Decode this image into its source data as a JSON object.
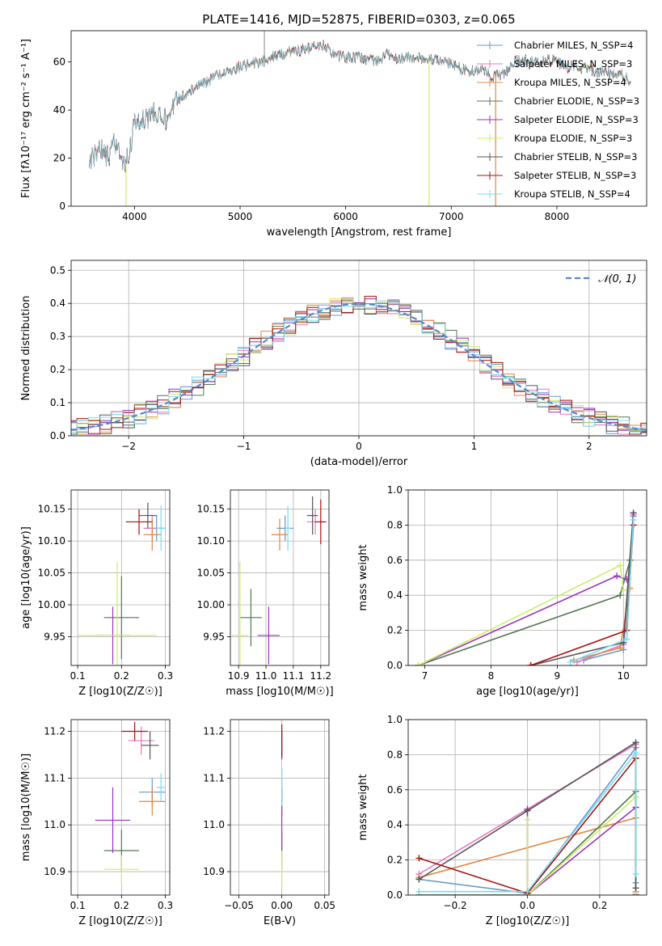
{
  "colors": [
    "#6699cc",
    "#e377c2",
    "#dd8844",
    "#557755",
    "#9933bb",
    "#ccee66",
    "#555555",
    "#aa1111",
    "#77ddee"
  ],
  "chart_data": [
    {
      "type": "line",
      "title": "PLATE=1416, MJD=52875, FIBERID=0303, z=0.065",
      "xlabel": "wavelength [Angstrom, rest frame]",
      "ylabel": "Flux [fλ10⁻¹⁷ erg cm⁻² s⁻¹ A⁻¹]",
      "xlim": [
        3400,
        8850
      ],
      "ylim": [
        0,
        73
      ],
      "xticks": [
        4000,
        5000,
        6000,
        7000,
        8000
      ],
      "xtick_labels": [
        "4000",
        "5000",
        "6000",
        "7000",
        "8000"
      ],
      "yticks": [
        0,
        20,
        40,
        60
      ],
      "ytick_labels": [
        "0",
        "20",
        "40",
        "60"
      ],
      "grid": false,
      "legend": "top-right",
      "legend_entries": [
        "Chabrier MILES, N_SSP=4",
        "Salpeter MILES, N_SSP=3",
        "Kroupa MILES, N_SSP=4",
        "Chabrier ELODIE, N_SSP=3",
        "Salpeter ELODIE, N_SSP=3",
        "Kroupa ELODIE, N_SSP=3",
        "Chabrier STELIB, N_SSP=3",
        "Salpeter STELIB, N_SSP=3",
        "Kroupa STELIB, N_SSP=4"
      ],
      "spectrum_x": [
        3570,
        3600,
        3650,
        3700,
        3750,
        3800,
        3850,
        3900,
        3950,
        4000,
        4050,
        4100,
        4150,
        4200,
        4250,
        4300,
        4400,
        4500,
        4600,
        4700,
        4800,
        4900,
        5000,
        5100,
        5200,
        5300,
        5400,
        5500,
        5600,
        5700,
        5800,
        5900,
        6000,
        6100,
        6200,
        6300,
        6400,
        6500,
        6600,
        6700,
        6800,
        6900,
        7000,
        7100,
        7200,
        7300,
        7400,
        7500,
        7600,
        7700,
        7800,
        7900,
        8000,
        8100,
        8200,
        8300,
        8400,
        8500,
        8600,
        8700
      ],
      "spectrum_y": [
        16,
        20,
        22,
        24,
        20,
        26,
        22,
        18,
        22,
        34,
        35,
        36,
        37,
        39,
        40,
        36,
        44,
        47,
        50,
        52,
        55,
        56,
        58,
        59,
        60,
        62,
        63,
        65,
        65,
        66,
        67,
        63,
        62,
        62,
        61,
        60,
        63,
        61,
        62,
        62,
        61,
        61,
        59,
        57,
        56,
        57,
        54,
        55,
        60,
        61,
        60,
        61,
        60,
        58,
        58,
        57,
        56,
        55,
        55,
        52
      ],
      "vertical_spikes": [
        {
          "x": 3920,
          "y_top": 0,
          "y_bottom": 18,
          "color": "#ccee66"
        },
        {
          "x": 5230,
          "y_top": 73,
          "y_bottom": 58,
          "color": "#999999"
        },
        {
          "x": 6790,
          "y_top": 61,
          "y_bottom": 0,
          "color": "#ccee66"
        },
        {
          "x": 7420,
          "y_top": 56,
          "y_bottom": 0,
          "color": "#dd8844"
        }
      ]
    },
    {
      "type": "histogram",
      "xlabel": "(data-model)/error",
      "ylabel": "Normed distribution",
      "xlim": [
        -2.5,
        2.5
      ],
      "ylim": [
        0,
        0.53
      ],
      "xticks": [
        -2,
        -1,
        0,
        1,
        2
      ],
      "xtick_labels": [
        "−2",
        "−1",
        "0",
        "1",
        "2"
      ],
      "yticks": [
        0,
        0.1,
        0.2,
        0.3,
        0.4,
        0.5
      ],
      "ytick_labels": [
        "0.0",
        "0.1",
        "0.2",
        "0.3",
        "0.4",
        "0.5"
      ],
      "grid": true,
      "legend": "top-right",
      "reference_curve": {
        "name": "𝒩(0, 1)",
        "mean": 0,
        "sd": 1,
        "color": "#5588cc"
      }
    },
    {
      "type": "scatter",
      "xlabel": "Z [log10(Z/Z☉)]",
      "ylabel": "age  [log10(age/yr)]",
      "xlim": [
        0.085,
        0.31
      ],
      "ylim": [
        9.905,
        10.18
      ],
      "xticks": [
        0.1,
        0.2,
        0.3
      ],
      "xtick_labels": [
        "0.1",
        "0.2",
        "0.3"
      ],
      "yticks": [
        9.95,
        10.0,
        10.05,
        10.1,
        10.15
      ],
      "ytick_labels": [
        "9.95",
        "10.00",
        "10.05",
        "10.10",
        "10.15"
      ],
      "grid": true,
      "points": [
        {
          "x": 0.28,
          "y": 10.12,
          "xerr": 0.02,
          "yerr": 0.02,
          "color": "#6699cc"
        },
        {
          "x": 0.27,
          "y": 10.12,
          "xerr": 0.02,
          "yerr": 0.02,
          "color": "#e377c2"
        },
        {
          "x": 0.27,
          "y": 10.11,
          "xerr": 0.02,
          "yerr": 0.025,
          "color": "#dd8844"
        },
        {
          "x": 0.2,
          "y": 9.98,
          "xerr": 0.04,
          "yerr": 0.065,
          "color": "#557755"
        },
        {
          "x": 0.18,
          "y": 9.952,
          "xerr": 0.04,
          "yerr": 0.045,
          "color": "#9933bb"
        },
        {
          "x": 0.19,
          "y": 9.952,
          "xerr": 0.09,
          "yerr": 0.115,
          "color": "#ccee66"
        },
        {
          "x": 0.26,
          "y": 10.14,
          "xerr": 0.02,
          "yerr": 0.02,
          "color": "#555555"
        },
        {
          "x": 0.24,
          "y": 10.13,
          "xerr": 0.03,
          "yerr": 0.02,
          "color": "#aa1111"
        },
        {
          "x": 0.29,
          "y": 10.12,
          "xerr": 0.01,
          "yerr": 0.035,
          "color": "#77ddee"
        }
      ]
    },
    {
      "type": "scatter",
      "xlabel": "mass [log10(M/M☉)]",
      "ylabel": "",
      "xlim": [
        10.87,
        11.23
      ],
      "ylim": [
        9.905,
        10.18
      ],
      "xticks": [
        10.9,
        11.0,
        11.1,
        11.2
      ],
      "xtick_labels": [
        "10.9",
        "11.0",
        "11.1",
        "11.2"
      ],
      "yticks": [
        9.95,
        10.0,
        10.05,
        10.1,
        10.15
      ],
      "ytick_labels": [
        "9.95",
        "10.00",
        "10.05",
        "10.10",
        "10.15"
      ],
      "grid": true,
      "points": [
        {
          "x": 11.07,
          "y": 10.12,
          "xerr": 0.03,
          "yerr": 0.02,
          "color": "#6699cc"
        },
        {
          "x": 11.18,
          "y": 10.13,
          "xerr": 0.03,
          "yerr": 0.02,
          "color": "#e377c2"
        },
        {
          "x": 11.05,
          "y": 10.11,
          "xerr": 0.03,
          "yerr": 0.025,
          "color": "#dd8844"
        },
        {
          "x": 10.945,
          "y": 9.98,
          "xerr": 0.04,
          "yerr": 0.045,
          "color": "#557755"
        },
        {
          "x": 11.01,
          "y": 9.952,
          "xerr": 0.04,
          "yerr": 0.045,
          "color": "#9933bb"
        },
        {
          "x": 10.905,
          "y": 9.952,
          "xerr": 0.03,
          "yerr": 0.115,
          "color": "#ccee66"
        },
        {
          "x": 11.17,
          "y": 10.14,
          "xerr": 0.02,
          "yerr": 0.03,
          "color": "#555555"
        },
        {
          "x": 11.2,
          "y": 10.13,
          "xerr": 0.02,
          "yerr": 0.035,
          "color": "#aa1111"
        },
        {
          "x": 11.08,
          "y": 10.12,
          "xerr": 0.01,
          "yerr": 0.035,
          "color": "#77ddee"
        }
      ]
    },
    {
      "type": "line",
      "xlabel": "age  [log10(age/yr)]",
      "ylabel": "mass weight",
      "xlim": [
        6.75,
        10.35
      ],
      "ylim": [
        0,
        1
      ],
      "xticks": [
        7,
        8,
        9,
        10
      ],
      "xtick_labels": [
        "7",
        "8",
        "9",
        "10"
      ],
      "yticks": [
        0,
        0.2,
        0.4,
        0.6,
        0.8,
        1.0
      ],
      "ytick_labels": [
        "0.0",
        "0.2",
        "0.4",
        "0.6",
        "0.8",
        "1.0"
      ],
      "grid": true,
      "series": [
        {
          "color": "#6699cc",
          "x": [
            9.4,
            10.0,
            10.15
          ],
          "y": [
            0.03,
            0.09,
            0.85
          ]
        },
        {
          "color": "#e377c2",
          "x": [
            9.3,
            10.0,
            10.15
          ],
          "y": [
            0.02,
            0.12,
            0.86
          ]
        },
        {
          "color": "#dd8844",
          "x": [
            9.25,
            9.95,
            10.1
          ],
          "y": [
            0.03,
            0.1,
            0.44
          ]
        },
        {
          "color": "#557755",
          "x": [
            6.9,
            9.95,
            10.1
          ],
          "y": [
            0.0,
            0.4,
            0.6
          ]
        },
        {
          "color": "#9933bb",
          "x": [
            6.9,
            9.9,
            10.05
          ],
          "y": [
            0.0,
            0.51,
            0.49
          ]
        },
        {
          "color": "#ccee66",
          "x": [
            6.9,
            9.95,
            10.0
          ],
          "y": [
            0.0,
            0.57,
            0.43
          ]
        },
        {
          "color": "#555555",
          "x": [
            8.6,
            10.0,
            10.15
          ],
          "y": [
            0.0,
            0.13,
            0.87
          ]
        },
        {
          "color": "#aa1111",
          "x": [
            8.6,
            10.05,
            10.15
          ],
          "y": [
            0.0,
            0.2,
            0.8
          ]
        },
        {
          "color": "#77ddee",
          "x": [
            9.2,
            10.05,
            10.15
          ],
          "y": [
            0.02,
            0.15,
            0.83
          ]
        }
      ]
    },
    {
      "type": "scatter",
      "xlabel": "Z [log10(Z/Z☉)]",
      "ylabel": "mass [log10(M/M☉)]",
      "xlim": [
        0.085,
        0.31
      ],
      "ylim": [
        10.85,
        11.225
      ],
      "xticks": [
        0.1,
        0.2,
        0.3
      ],
      "xtick_labels": [
        "0.1",
        "0.2",
        "0.3"
      ],
      "yticks": [
        10.9,
        11.0,
        11.1,
        11.2
      ],
      "ytick_labels": [
        "10.9",
        "11.0",
        "11.1",
        "11.2"
      ],
      "grid": true,
      "points": [
        {
          "x": 0.27,
          "y": 11.07,
          "xerr": 0.03,
          "yerr": 0.03,
          "color": "#6699cc"
        },
        {
          "x": 0.245,
          "y": 11.18,
          "xerr": 0.03,
          "yerr": 0.03,
          "color": "#e377c2"
        },
        {
          "x": 0.27,
          "y": 11.05,
          "xerr": 0.03,
          "yerr": 0.03,
          "color": "#dd8844"
        },
        {
          "x": 0.2,
          "y": 10.945,
          "xerr": 0.04,
          "yerr": 0.045,
          "color": "#557755"
        },
        {
          "x": 0.18,
          "y": 11.01,
          "xerr": 0.04,
          "yerr": 0.07,
          "color": "#9933bb"
        },
        {
          "x": 0.2,
          "y": 10.905,
          "xerr": 0.04,
          "yerr": 0.03,
          "color": "#ccee66"
        },
        {
          "x": 0.265,
          "y": 11.17,
          "xerr": 0.02,
          "yerr": 0.03,
          "color": "#555555"
        },
        {
          "x": 0.23,
          "y": 11.2,
          "xerr": 0.03,
          "yerr": 0.02,
          "color": "#aa1111"
        },
        {
          "x": 0.29,
          "y": 11.08,
          "xerr": 0.01,
          "yerr": 0.03,
          "color": "#77ddee"
        }
      ]
    },
    {
      "type": "scatter",
      "xlabel": "E(B-V)",
      "ylabel": "",
      "xlim": [
        -0.06,
        0.055
      ],
      "ylim": [
        10.85,
        11.225
      ],
      "xticks": [
        -0.05,
        0.0,
        0.05
      ],
      "xtick_labels": [
        "−0.05",
        "0.00",
        "0.05"
      ],
      "yticks": [
        10.9,
        11.0,
        11.1,
        11.2
      ],
      "ytick_labels": [
        "10.9",
        "11.0",
        "11.1",
        "11.2"
      ],
      "grid": true,
      "points": [
        {
          "x": 0.0,
          "y": 11.07,
          "xerr": 0,
          "yerr": 0.05,
          "color": "#6699cc"
        },
        {
          "x": 0.0,
          "y": 11.18,
          "xerr": 0,
          "yerr": 0.03,
          "color": "#e377c2"
        },
        {
          "x": 0.0,
          "y": 11.05,
          "xerr": 0,
          "yerr": 0.03,
          "color": "#dd8844"
        },
        {
          "x": 0.0,
          "y": 10.945,
          "xerr": 0,
          "yerr": 0.04,
          "color": "#557755"
        },
        {
          "x": 0.0,
          "y": 11.01,
          "xerr": 0,
          "yerr": 0.07,
          "color": "#9933bb"
        },
        {
          "x": 0.0,
          "y": 10.905,
          "xerr": 0,
          "yerr": 0.04,
          "color": "#ccee66"
        },
        {
          "x": 0.0,
          "y": 11.17,
          "xerr": 0,
          "yerr": 0.03,
          "color": "#555555"
        },
        {
          "x": 0.0,
          "y": 11.18,
          "xerr": 0,
          "yerr": 0.035,
          "color": "#aa1111"
        },
        {
          "x": 0.0,
          "y": 11.08,
          "xerr": 0,
          "yerr": 0.04,
          "color": "#77ddee"
        }
      ]
    },
    {
      "type": "line",
      "xlabel": "Z [log10(Z/Z☉)]",
      "ylabel": "mass weight",
      "xlim": [
        -0.33,
        0.33
      ],
      "ylim": [
        0,
        1
      ],
      "xticks": [
        -0.2,
        0.0,
        0.2
      ],
      "xtick_labels": [
        "−0.2",
        "0.0",
        "0.2"
      ],
      "yticks": [
        0,
        0.2,
        0.4,
        0.6,
        0.8,
        1.0
      ],
      "ytick_labels": [
        "0.0",
        "0.2",
        "0.4",
        "0.6",
        "0.8",
        "1.0"
      ],
      "grid": true,
      "series": [
        {
          "color": "#6699cc",
          "x": [
            -0.3,
            0.0,
            0.3,
            0.3
          ],
          "y": [
            0.09,
            0.01,
            0.84,
            0.07
          ]
        },
        {
          "color": "#e377c2",
          "x": [
            -0.3,
            0.3,
            0.3
          ],
          "y": [
            0.12,
            0.86,
            0.02
          ]
        },
        {
          "color": "#dd8844",
          "x": [
            -0.3,
            0.3,
            0.3
          ],
          "y": [
            0.1,
            0.44,
            0.01
          ]
        },
        {
          "color": "#557755",
          "x": [
            -0.3,
            0.0,
            0.3,
            0.3
          ],
          "y": [
            0.0,
            0.0,
            0.59,
            0.0
          ]
        },
        {
          "color": "#9933bb",
          "x": [
            0.0,
            0.0,
            0.3,
            0.3
          ],
          "y": [
            0.49,
            0.0,
            0.5,
            0.0
          ]
        },
        {
          "color": "#ccee66",
          "x": [
            0.0,
            0.0,
            0.3,
            0.3
          ],
          "y": [
            0.43,
            0.0,
            0.56,
            0.01
          ]
        },
        {
          "color": "#555555",
          "x": [
            -0.3,
            0.0,
            0.3,
            0.3
          ],
          "y": [
            0.09,
            0.48,
            0.87,
            0.04
          ]
        },
        {
          "color": "#aa1111",
          "x": [
            -0.3,
            0.0,
            0.3
          ],
          "y": [
            0.21,
            0.01,
            0.78
          ]
        },
        {
          "color": "#77ddee",
          "x": [
            -0.3,
            0.0,
            0.3,
            0.3
          ],
          "y": [
            0.02,
            0.02,
            0.81,
            0.12
          ]
        }
      ]
    }
  ]
}
